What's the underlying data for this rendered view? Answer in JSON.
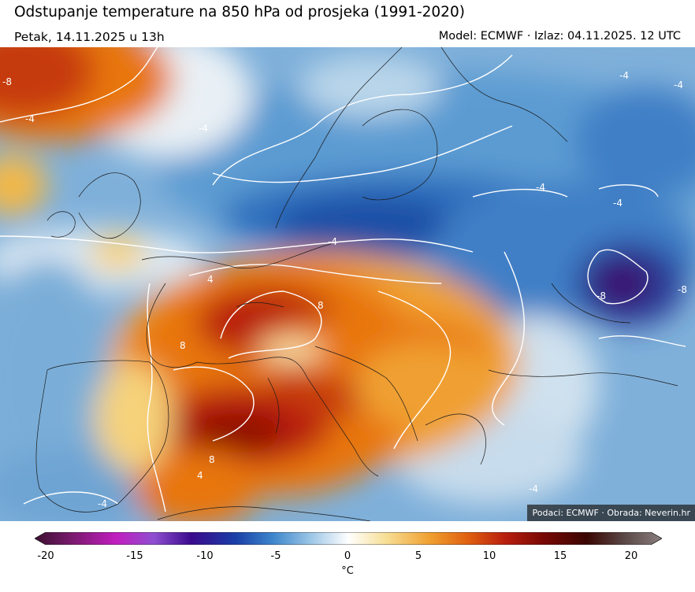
{
  "header": {
    "title": "Odstupanje temperature na 850 hPa od prosjeka (1991-2020)",
    "valid_time": "Petak, 14.11.2025 u 13h",
    "model_info": "Model: ECMWF · Izlaz: 04.11.2025. 12 UTC"
  },
  "map": {
    "credit": "Podaci: ECMWF · Obrada: Neverin.hr",
    "contour_labels": [
      "-8",
      "-4",
      "4",
      "8"
    ],
    "colors": {
      "deep_cold": "#3a0a6e",
      "cold": "#1a4fa6",
      "cool": "#5b9bd2",
      "mild_cool": "#b9d6ea",
      "neutral": "#f4f7f9",
      "mild_warm": "#f6d27a",
      "warm": "#e8760e",
      "hot": "#b81f0e",
      "very_hot": "#8c0a04"
    }
  },
  "colorbar": {
    "min": -20,
    "max": 20,
    "ticks": [
      "-20",
      "-15",
      "-10",
      "-5",
      "0",
      "5",
      "10",
      "15",
      "20"
    ],
    "unit": "°C"
  }
}
